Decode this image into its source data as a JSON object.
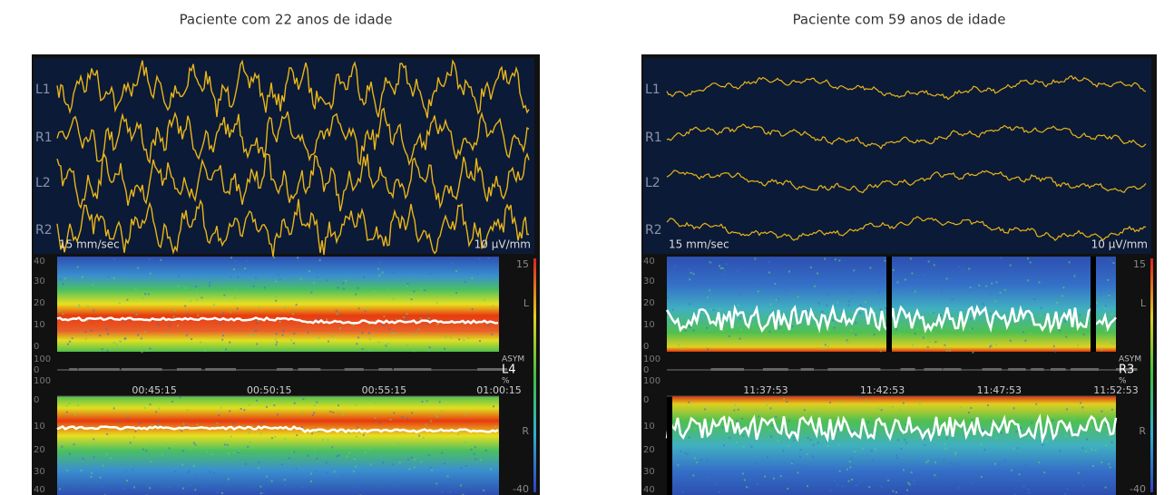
{
  "panels": [
    {
      "title": "Paciente com 22 anos de idade",
      "channels": [
        "L1",
        "R1",
        "L2",
        "R2"
      ],
      "speed": "15 mm/sec",
      "gain": "10 µV/mm",
      "upper_ticks": [
        "40",
        "30",
        "20",
        "10",
        "0"
      ],
      "scale_top": "15",
      "scale_upper": "L",
      "scale_lower": "R",
      "scale_bottom": "-40",
      "asym_ticks": [
        "100",
        "0",
        "100"
      ],
      "asym_title": "ASYM",
      "asym_channel": "L4",
      "asym_unit": "%",
      "times": [
        "00:45:15",
        "00:50:15",
        "00:55:15",
        "01:00:15"
      ],
      "lower_ticks": [
        "0",
        "10",
        "20",
        "30",
        "40"
      ]
    },
    {
      "title": "Paciente com 59 anos de idade",
      "channels": [
        "L1",
        "R1",
        "L2",
        "R2"
      ],
      "speed": "15 mm/sec",
      "gain": "10 µV/mm",
      "upper_ticks": [
        "40",
        "30",
        "20",
        "10",
        "0"
      ],
      "scale_top": "15",
      "scale_upper": "L",
      "scale_lower": "R",
      "scale_bottom": "-40",
      "asym_ticks": [
        "100",
        "0",
        "100"
      ],
      "asym_title": "ASYM",
      "asym_channel": "R3",
      "asym_unit": "%",
      "times": [
        "11:37:53",
        "11:42:53",
        "11:47:53",
        "11:52:53"
      ],
      "lower_ticks": [
        "0",
        "10",
        "20",
        "30",
        "40"
      ]
    }
  ]
}
